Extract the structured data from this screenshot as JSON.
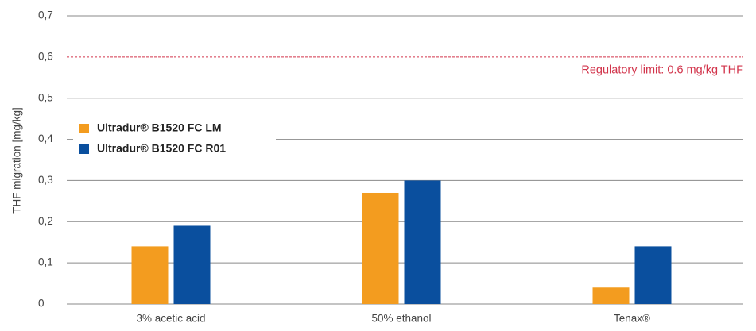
{
  "chart_data": {
    "type": "bar",
    "y_label": "THF migration [mg/kg]",
    "categories": [
      "3% acetic acid",
      "50% ethanol",
      "Tenax®"
    ],
    "series": [
      {
        "name": "Ultradur® B1520 FC LM",
        "color": "#f39c1f",
        "values": [
          0.14,
          0.27,
          0.04
        ]
      },
      {
        "name": "Ultradur® B1520 FC R01",
        "color": "#0a4f9e",
        "values": [
          0.19,
          0.3,
          0.14
        ]
      }
    ],
    "ylim": [
      0,
      0.7
    ],
    "yticks": [
      0,
      {
        "value": 0.1,
        "label": "0,1"
      },
      {
        "value": 0.2,
        "label": "0,2"
      },
      {
        "value": 0.3,
        "label": "0,3"
      },
      {
        "value": 0.4,
        "label": "0,4"
      },
      {
        "value": 0.5,
        "label": "0,5"
      },
      {
        "value": 0.6,
        "label": "0,6"
      },
      {
        "value": 0.7,
        "label": "0,7"
      }
    ],
    "grid": true,
    "legend": "upper left",
    "reference_line": {
      "value": 0.6,
      "label": "Regulatory limit: 0.6 mg/kg THF",
      "color": "#d2344b"
    }
  }
}
